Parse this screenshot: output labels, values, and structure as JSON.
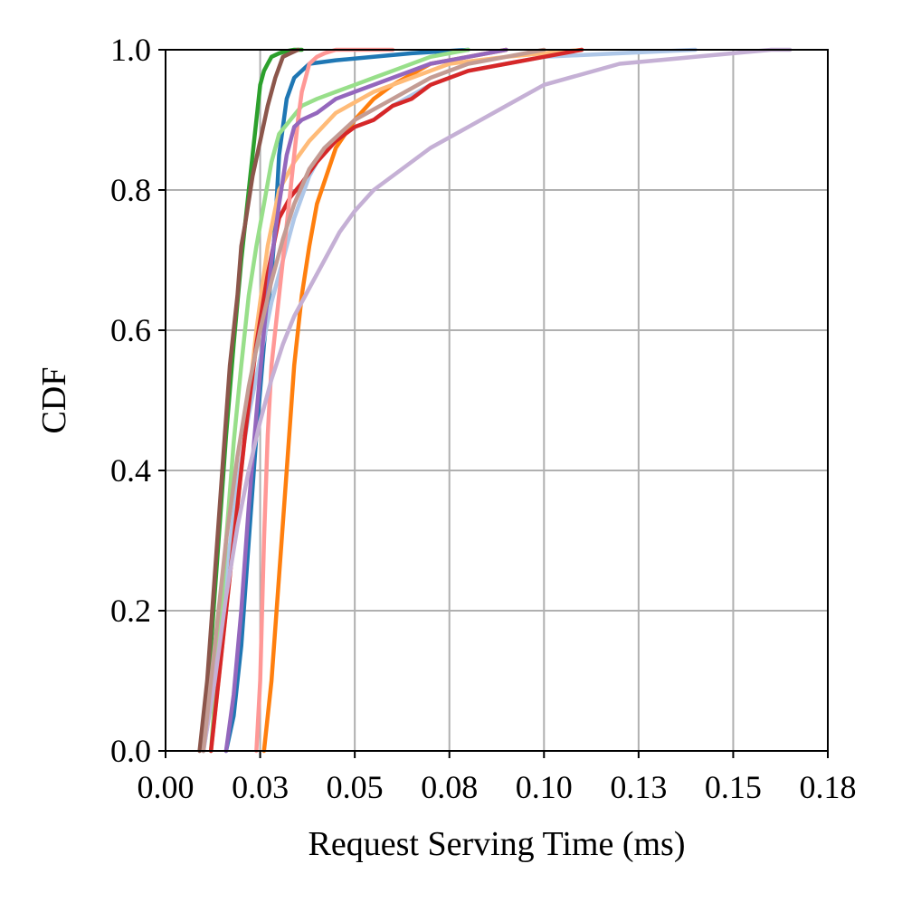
{
  "chart_data": {
    "type": "line",
    "title": "",
    "xlabel": "Request Serving Time (ms)",
    "ylabel": "CDF",
    "xlim": [
      0,
      0.175
    ],
    "ylim": [
      0,
      1.0
    ],
    "grid": true,
    "legend": "none",
    "xticks": [
      0,
      0.025,
      0.05,
      0.075,
      0.1,
      0.125,
      0.15,
      0.175
    ],
    "xtick_labels": [
      "0.00",
      "0.03",
      "0.05",
      "0.08",
      "0.10",
      "0.13",
      "0.15",
      "0.18"
    ],
    "yticks": [
      0,
      0.2,
      0.4,
      0.6,
      0.8,
      1.0
    ],
    "ytick_labels": [
      "0.0",
      "0.2",
      "0.4",
      "0.6",
      "0.8",
      "1.0"
    ],
    "series": [
      {
        "color": "#1f77b4",
        "x": [
          0.016,
          0.018,
          0.02,
          0.022,
          0.024,
          0.026,
          0.028,
          0.029,
          0.03,
          0.032,
          0.034,
          0.038,
          0.045,
          0.055,
          0.065,
          0.08
        ],
        "y": [
          0,
          0.05,
          0.15,
          0.3,
          0.45,
          0.58,
          0.68,
          0.75,
          0.85,
          0.93,
          0.96,
          0.98,
          0.985,
          0.99,
          0.995,
          1.0
        ]
      },
      {
        "color": "#aec7e8",
        "x": [
          0.01,
          0.013,
          0.016,
          0.019,
          0.022,
          0.025,
          0.028,
          0.031,
          0.034,
          0.038,
          0.042,
          0.046,
          0.05,
          0.055,
          0.06,
          0.07,
          0.08,
          0.09,
          0.1,
          0.12,
          0.14
        ],
        "y": [
          0,
          0.1,
          0.25,
          0.38,
          0.48,
          0.56,
          0.64,
          0.7,
          0.76,
          0.82,
          0.86,
          0.88,
          0.89,
          0.9,
          0.92,
          0.95,
          0.97,
          0.98,
          0.99,
          0.995,
          1.0
        ]
      },
      {
        "color": "#ff7f0e",
        "x": [
          0.026,
          0.028,
          0.03,
          0.032,
          0.034,
          0.036,
          0.038,
          0.04,
          0.045,
          0.05,
          0.055,
          0.06,
          0.07,
          0.08,
          0.09
        ],
        "y": [
          0,
          0.1,
          0.25,
          0.4,
          0.55,
          0.65,
          0.72,
          0.78,
          0.86,
          0.9,
          0.93,
          0.95,
          0.98,
          0.99,
          1.0
        ]
      },
      {
        "color": "#ffbb78",
        "x": [
          0.012,
          0.015,
          0.018,
          0.021,
          0.024,
          0.027,
          0.03,
          0.034,
          0.038,
          0.045,
          0.055,
          0.065,
          0.075,
          0.09,
          0.11
        ],
        "y": [
          0,
          0.15,
          0.3,
          0.45,
          0.6,
          0.72,
          0.8,
          0.84,
          0.87,
          0.91,
          0.94,
          0.96,
          0.98,
          0.99,
          1.0
        ]
      },
      {
        "color": "#2ca02c",
        "x": [
          0.01,
          0.012,
          0.014,
          0.016,
          0.018,
          0.02,
          0.022,
          0.024,
          0.025,
          0.026,
          0.027,
          0.028,
          0.03,
          0.032,
          0.034,
          0.036
        ],
        "y": [
          0,
          0.15,
          0.3,
          0.45,
          0.58,
          0.7,
          0.8,
          0.9,
          0.95,
          0.97,
          0.98,
          0.99,
          0.995,
          0.998,
          1.0,
          1.0
        ]
      },
      {
        "color": "#98df8a",
        "x": [
          0.012,
          0.014,
          0.016,
          0.018,
          0.02,
          0.022,
          0.024,
          0.026,
          0.028,
          0.03,
          0.033,
          0.036,
          0.04,
          0.045,
          0.05,
          0.055,
          0.06,
          0.07,
          0.08
        ],
        "y": [
          0,
          0.15,
          0.3,
          0.44,
          0.55,
          0.65,
          0.72,
          0.78,
          0.84,
          0.88,
          0.9,
          0.92,
          0.93,
          0.94,
          0.95,
          0.96,
          0.97,
          0.99,
          1.0
        ]
      },
      {
        "color": "#d62728",
        "x": [
          0.012,
          0.015,
          0.018,
          0.021,
          0.024,
          0.027,
          0.03,
          0.033,
          0.036,
          0.04,
          0.045,
          0.05,
          0.055,
          0.06,
          0.065,
          0.07,
          0.08,
          0.09,
          0.1,
          0.11
        ],
        "y": [
          0,
          0.15,
          0.3,
          0.45,
          0.58,
          0.68,
          0.76,
          0.79,
          0.81,
          0.84,
          0.87,
          0.89,
          0.9,
          0.92,
          0.93,
          0.95,
          0.97,
          0.98,
          0.99,
          1.0
        ]
      },
      {
        "color": "#ff9896",
        "x": [
          0.024,
          0.025,
          0.026,
          0.027,
          0.028,
          0.03,
          0.032,
          0.034,
          0.035,
          0.036,
          0.037,
          0.038,
          0.04,
          0.042,
          0.045,
          0.05,
          0.06
        ],
        "y": [
          0,
          0.1,
          0.3,
          0.45,
          0.55,
          0.65,
          0.75,
          0.85,
          0.9,
          0.94,
          0.96,
          0.98,
          0.99,
          0.995,
          1.0,
          1.0,
          1.0
        ]
      },
      {
        "color": "#9467bd",
        "x": [
          0.016,
          0.018,
          0.02,
          0.022,
          0.024,
          0.026,
          0.028,
          0.03,
          0.032,
          0.034,
          0.036,
          0.04,
          0.045,
          0.05,
          0.06,
          0.07,
          0.08,
          0.09
        ],
        "y": [
          0,
          0.08,
          0.2,
          0.35,
          0.48,
          0.6,
          0.7,
          0.78,
          0.85,
          0.89,
          0.9,
          0.91,
          0.93,
          0.94,
          0.96,
          0.98,
          0.99,
          1.0
        ]
      },
      {
        "color": "#c5b0d5",
        "x": [
          0.01,
          0.013,
          0.016,
          0.019,
          0.022,
          0.025,
          0.028,
          0.031,
          0.034,
          0.038,
          0.042,
          0.046,
          0.05,
          0.055,
          0.06,
          0.065,
          0.07,
          0.08,
          0.09,
          0.1,
          0.12,
          0.14,
          0.16,
          0.165
        ],
        "y": [
          0,
          0.1,
          0.22,
          0.32,
          0.4,
          0.47,
          0.53,
          0.58,
          0.62,
          0.66,
          0.7,
          0.74,
          0.77,
          0.8,
          0.82,
          0.84,
          0.86,
          0.89,
          0.92,
          0.95,
          0.98,
          0.99,
          1.0,
          1.0
        ]
      },
      {
        "color": "#8c564b",
        "x": [
          0.009,
          0.011,
          0.013,
          0.015,
          0.017,
          0.019,
          0.02,
          0.021,
          0.023,
          0.025,
          0.027,
          0.029,
          0.031,
          0.033,
          0.035
        ],
        "y": [
          0,
          0.1,
          0.25,
          0.4,
          0.55,
          0.65,
          0.72,
          0.75,
          0.82,
          0.87,
          0.92,
          0.96,
          0.99,
          0.995,
          1.0
        ]
      },
      {
        "color": "#c49c94",
        "x": [
          0.01,
          0.013,
          0.016,
          0.019,
          0.022,
          0.025,
          0.028,
          0.031,
          0.034,
          0.038,
          0.042,
          0.046,
          0.05,
          0.06,
          0.07,
          0.08,
          0.09,
          0.1
        ],
        "y": [
          0,
          0.15,
          0.3,
          0.42,
          0.52,
          0.6,
          0.67,
          0.73,
          0.78,
          0.83,
          0.86,
          0.88,
          0.9,
          0.93,
          0.96,
          0.98,
          0.99,
          1.0
        ]
      }
    ]
  }
}
